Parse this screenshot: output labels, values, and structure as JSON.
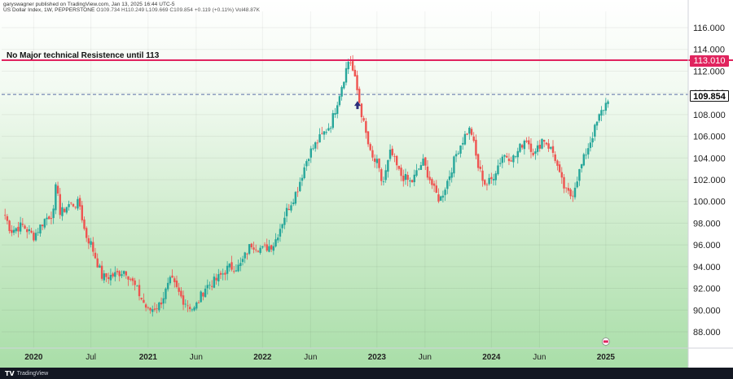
{
  "header": {
    "publisher": "garyswagner published on TradingView.com, Jan 13, 2025 16:44 UTC-5",
    "symbol": "US Dollar Index, 1W, PEPPERSTONE",
    "ohlc": "O109.734 H110.249 L109.669 C109.854 +0.119 (+0.11%) Vol48.87K"
  },
  "annotation": {
    "note": "No Major technical Resistence until 113"
  },
  "price_tags": {
    "resistance": "113.010",
    "last": "109.854"
  },
  "footer": {
    "brand": "TradingView"
  },
  "colors": {
    "up": "#26a69a",
    "down": "#ef5350",
    "resistance_line": "#e0245e",
    "last_price_line": "#5b6fa8",
    "arrow": "#2a2e7a"
  },
  "chart_data": {
    "type": "candlestick",
    "title": "US Dollar Index, 1W, PEPPERSTONE",
    "ylim": [
      86.5,
      117.5
    ],
    "y_ticks": [
      "116.000",
      "114.000",
      "112.000",
      "110.000",
      "108.000",
      "106.000",
      "104.000",
      "102.000",
      "100.000",
      "98.000",
      "96.000",
      "94.000",
      "92.000",
      "90.000",
      "88.000"
    ],
    "y_tick_values": [
      116,
      114,
      112,
      110,
      108,
      106,
      104,
      102,
      100,
      98,
      96,
      94,
      92,
      90,
      88
    ],
    "x_tick_labels": [
      "2020",
      "Jul",
      "2021",
      "Jun",
      "2022",
      "Jun",
      "2023",
      "Jun",
      "2024",
      "Jun",
      "2025"
    ],
    "x_tick_dates": [
      2020.0,
      2020.5,
      2021.0,
      2021.42,
      2022.0,
      2022.42,
      2023.0,
      2023.42,
      2024.0,
      2024.42,
      2025.0
    ],
    "xlim": [
      2019.72,
      2025.72
    ],
    "horizontal_lines": [
      {
        "value": 113.01,
        "style": "solid",
        "label": "113.010"
      },
      {
        "value": 109.854,
        "style": "dashed",
        "label": "109.854"
      }
    ],
    "weekly_close_anchors": [
      [
        2019.75,
        98.7
      ],
      [
        2019.8,
        97.3
      ],
      [
        2019.9,
        97.8
      ],
      [
        2020.0,
        96.8
      ],
      [
        2020.1,
        98.4
      ],
      [
        2020.18,
        99.0
      ],
      [
        2020.2,
        102.5
      ],
      [
        2020.23,
        98.8
      ],
      [
        2020.3,
        99.7
      ],
      [
        2020.4,
        99.8
      ],
      [
        2020.45,
        97.0
      ],
      [
        2020.5,
        96.1
      ],
      [
        2020.6,
        93.0
      ],
      [
        2020.7,
        93.2
      ],
      [
        2020.8,
        93.7
      ],
      [
        2020.9,
        91.9
      ],
      [
        2021.0,
        89.9
      ],
      [
        2021.1,
        90.5
      ],
      [
        2021.2,
        92.8
      ],
      [
        2021.3,
        91.0
      ],
      [
        2021.4,
        90.0
      ],
      [
        2021.5,
        92.1
      ],
      [
        2021.6,
        92.8
      ],
      [
        2021.7,
        93.9
      ],
      [
        2021.8,
        94.0
      ],
      [
        2021.9,
        96.1
      ],
      [
        2022.0,
        95.6
      ],
      [
        2022.1,
        96.1
      ],
      [
        2022.2,
        98.9
      ],
      [
        2022.3,
        101.0
      ],
      [
        2022.4,
        104.3
      ],
      [
        2022.5,
        105.8
      ],
      [
        2022.6,
        107.2
      ],
      [
        2022.7,
        111.0
      ],
      [
        2022.76,
        113.3
      ],
      [
        2022.82,
        110.6
      ],
      [
        2022.88,
        107.3
      ],
      [
        2022.95,
        104.0
      ],
      [
        2023.0,
        103.5
      ],
      [
        2023.05,
        101.5
      ],
      [
        2023.12,
        104.6
      ],
      [
        2023.2,
        102.5
      ],
      [
        2023.3,
        101.7
      ],
      [
        2023.4,
        103.7
      ],
      [
        2023.45,
        102.4
      ],
      [
        2023.5,
        101.0
      ],
      [
        2023.55,
        100.1
      ],
      [
        2023.62,
        102.0
      ],
      [
        2023.7,
        104.6
      ],
      [
        2023.78,
        106.3
      ],
      [
        2023.82,
        106.7
      ],
      [
        2023.88,
        103.3
      ],
      [
        2023.95,
        101.5
      ],
      [
        2024.0,
        102.0
      ],
      [
        2024.1,
        104.3
      ],
      [
        2024.2,
        104.0
      ],
      [
        2024.3,
        105.9
      ],
      [
        2024.38,
        104.3
      ],
      [
        2024.45,
        105.9
      ],
      [
        2024.55,
        104.3
      ],
      [
        2024.6,
        102.2
      ],
      [
        2024.65,
        100.9
      ],
      [
        2024.7,
        100.5
      ],
      [
        2024.76,
        102.5
      ],
      [
        2024.82,
        104.3
      ],
      [
        2024.88,
        106.0
      ],
      [
        2024.95,
        108.0
      ],
      [
        2025.0,
        109.0
      ],
      [
        2025.03,
        109.854
      ]
    ]
  }
}
